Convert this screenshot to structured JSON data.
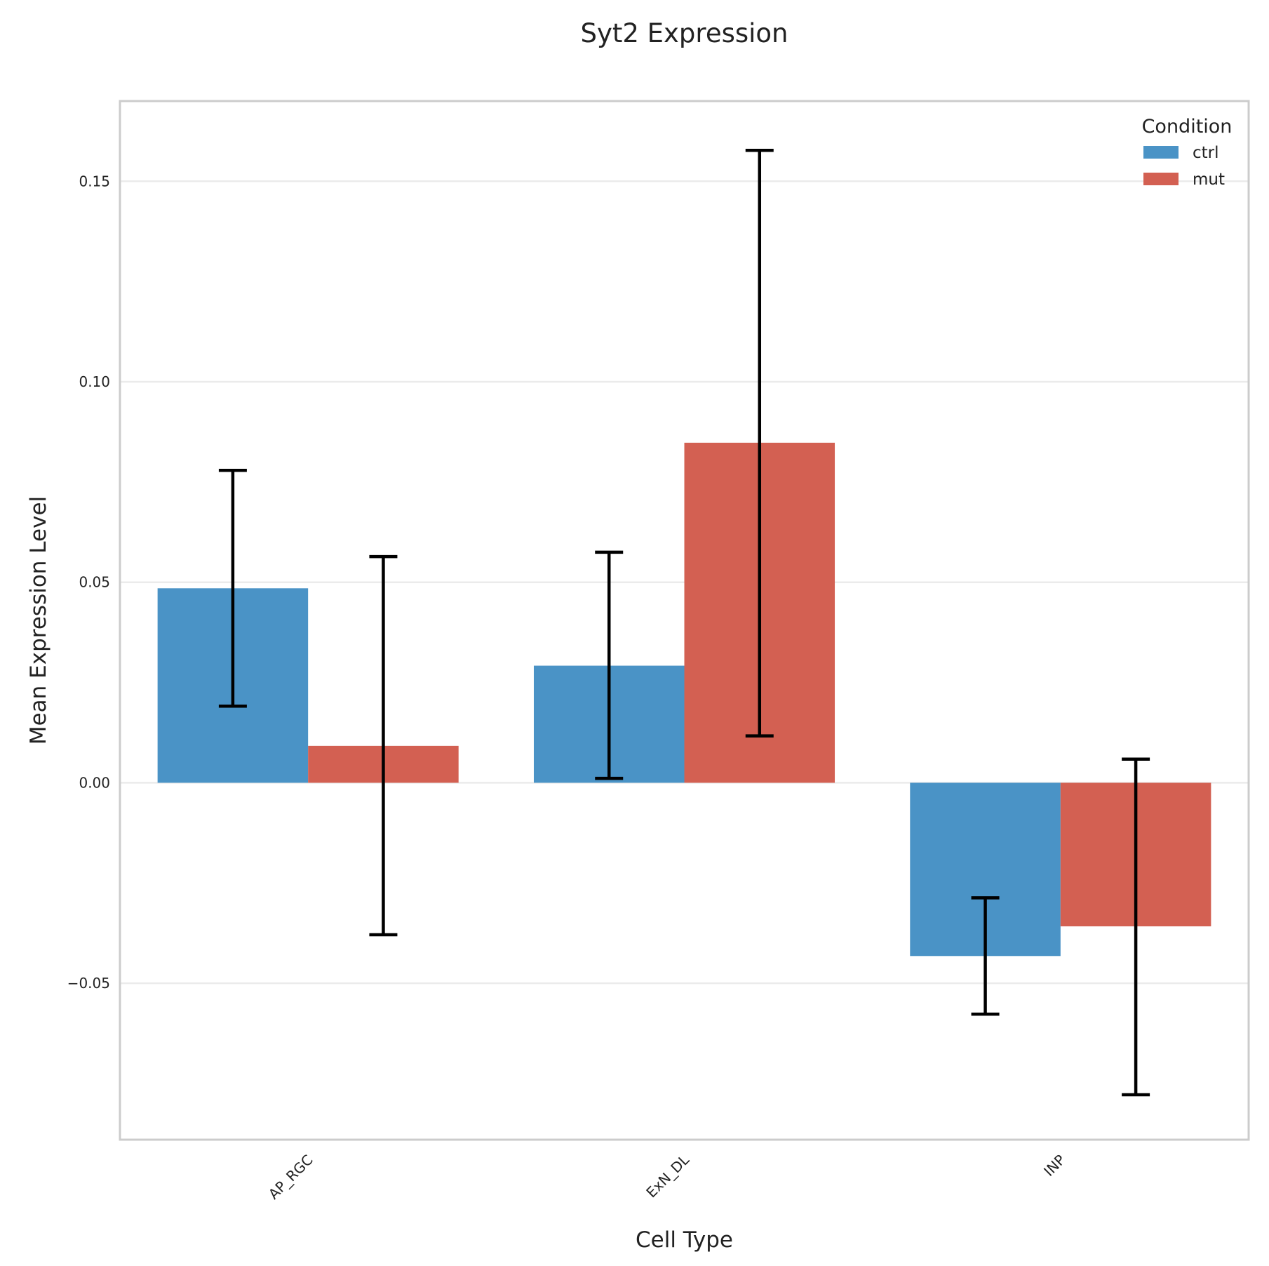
{
  "chart_data": {
    "type": "bar",
    "title": "Syt2 Expression",
    "xlabel": "Cell Type",
    "ylabel": "Mean Expression Level",
    "categories": [
      "AP_RGC",
      "ExN_DL",
      "INP"
    ],
    "series": [
      {
        "name": "ctrl",
        "color": "#4a93c6",
        "values": [
          0.0485,
          0.0292,
          -0.0432
        ],
        "error_low": [
          0.0191,
          0.0011,
          -0.0577
        ],
        "error_high": [
          0.0779,
          0.0575,
          -0.0287
        ]
      },
      {
        "name": "mut",
        "color": "#d36052",
        "values": [
          0.0092,
          0.0848,
          -0.0358
        ],
        "error_low": [
          -0.0379,
          0.0117,
          -0.0778
        ],
        "error_high": [
          0.0564,
          0.1577,
          0.0059
        ]
      }
    ],
    "yticks": [
      -0.05,
      0.0,
      0.05,
      0.1,
      0.15
    ],
    "ytick_labels": [
      "−0.05",
      "0.00",
      "0.05",
      "0.10",
      "0.15"
    ],
    "ylim": [
      -0.089,
      0.17
    ],
    "grid": true,
    "legend_title": "Condition",
    "legend_position": "top-right"
  }
}
